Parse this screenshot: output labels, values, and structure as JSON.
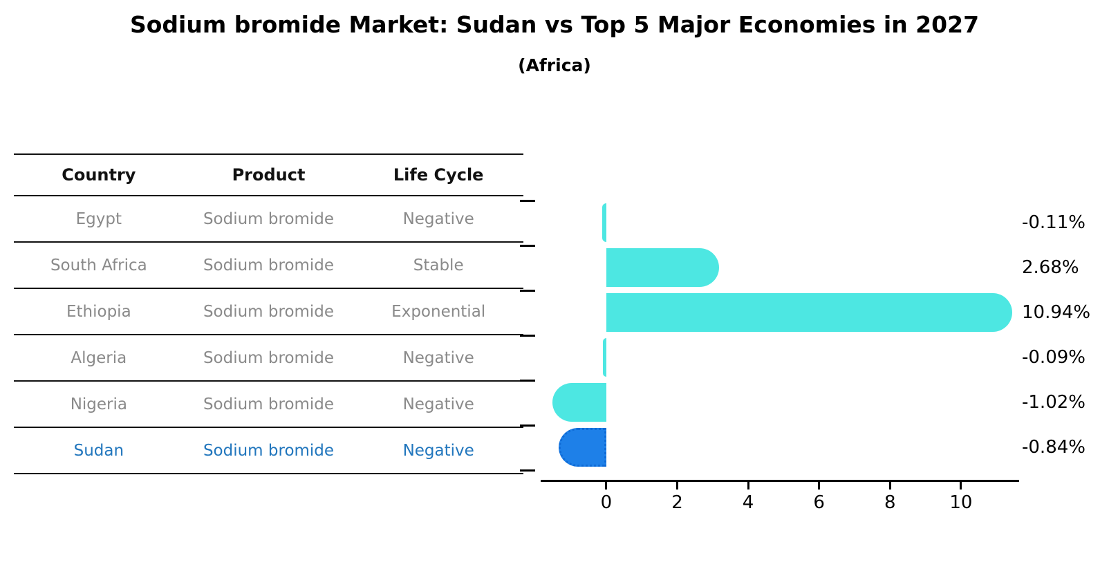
{
  "title": "Sodium bromide Market: Sudan vs Top 5 Major Economies in 2027",
  "subtitle": "(Africa)",
  "table": {
    "headers": [
      "Country",
      "Product",
      "Life Cycle"
    ],
    "rows": [
      {
        "country": "Egypt",
        "product": "Sodium bromide",
        "life_cycle": "Negative",
        "highlighted": false
      },
      {
        "country": "South Africa",
        "product": "Sodium bromide",
        "life_cycle": "Stable",
        "highlighted": false
      },
      {
        "country": "Ethiopia",
        "product": "Sodium bromide",
        "life_cycle": "Exponential",
        "highlighted": false
      },
      {
        "country": "Algeria",
        "product": "Sodium bromide",
        "life_cycle": "Negative",
        "highlighted": false
      },
      {
        "country": "Nigeria",
        "product": "Sodium bromide",
        "life_cycle": "Negative",
        "highlighted": false
      },
      {
        "country": "Sudan",
        "product": "Sodium bromide",
        "life_cycle": "Negative",
        "highlighted": true
      }
    ]
  },
  "chart_data": {
    "type": "bar",
    "orientation": "horizontal",
    "title": "Sodium bromide Market: Sudan vs Top 5 Major Economies in 2027 (Africa)",
    "categories": [
      "Egypt",
      "South Africa",
      "Ethiopia",
      "Algeria",
      "Nigeria",
      "Sudan"
    ],
    "values": [
      -0.11,
      2.68,
      10.94,
      -0.09,
      -1.02,
      -0.84
    ],
    "value_labels": [
      "-0.11%",
      "2.68%",
      "10.94%",
      "-0.09%",
      "-1.02%",
      "-0.84%"
    ],
    "xticks": [
      0,
      2,
      4,
      6,
      8,
      10
    ],
    "xtick_labels": [
      "0",
      "2",
      "4",
      "6",
      "8",
      "10"
    ],
    "xlim": [
      -1.85,
      11.64
    ],
    "grid": false,
    "legend": "none",
    "xlabel": "",
    "ylabel": "",
    "highlight_index": 5,
    "colors": {
      "bar": "#4DE7E2",
      "highlight_fill": "#1E80E8",
      "highlight_border": "#0F6BD6",
      "axis": "#000000"
    }
  },
  "text_colors": {
    "header": "#111111",
    "row": "#8a8a8a",
    "highlight_row": "#2176BD"
  }
}
